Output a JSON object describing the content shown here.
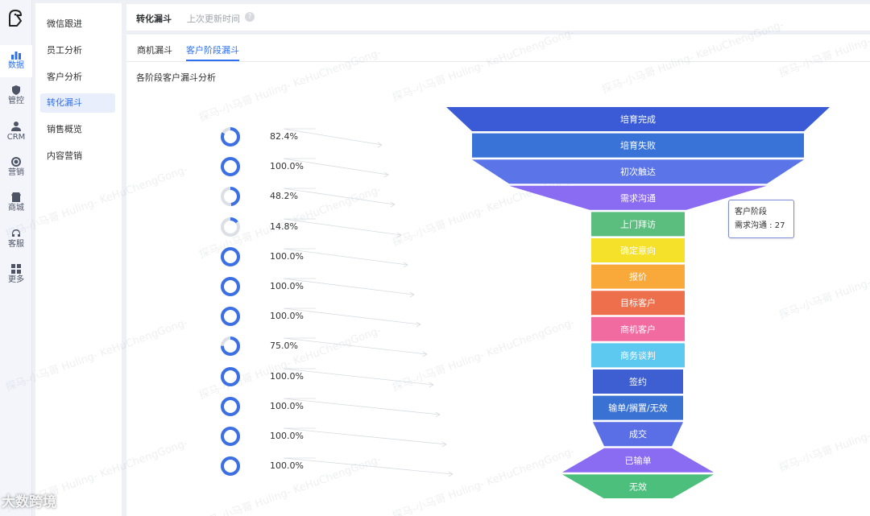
{
  "rail": {
    "items": [
      {
        "label": "数据",
        "icon": "bar-chart-icon",
        "active": true
      },
      {
        "label": "管控",
        "icon": "shield-icon"
      },
      {
        "label": "CRM",
        "icon": "user-icon"
      },
      {
        "label": "营销",
        "icon": "target-icon"
      },
      {
        "label": "商城",
        "icon": "shop-icon"
      },
      {
        "label": "客服",
        "icon": "headset-icon"
      },
      {
        "label": "更多",
        "icon": "grid-icon"
      }
    ]
  },
  "menu": {
    "items": [
      "微信跟进",
      "员工分析",
      "客户分析",
      "转化漏斗",
      "销售概览",
      "内容营销"
    ],
    "active": "转化漏斗"
  },
  "header": {
    "title": "转化漏斗",
    "updated": "上次更新时间",
    "help": "?"
  },
  "tabs": [
    "商机漏斗",
    "客户阶段漏斗"
  ],
  "active_tab": "客户阶段漏斗",
  "subtitle": "各阶段客户漏斗分析",
  "conversion_rates": [
    "82.4%",
    "100.0%",
    "48.2%",
    "14.8%",
    "100.0%",
    "100.0%",
    "100.0%",
    "75.0%",
    "100.0%",
    "100.0%",
    "100.0%",
    "100.0%"
  ],
  "conversion_values": [
    82.4,
    100,
    48.2,
    14.8,
    100,
    100,
    100,
    75,
    100,
    100,
    100,
    100
  ],
  "funnel": {
    "stages": [
      "培育完成",
      "培育失败",
      "初次触达",
      "需求沟通",
      "上门拜访",
      "确定意向",
      "报价",
      "目标客户",
      "商机客户",
      "商务谈判",
      "签约",
      "输单/搁置/无效",
      "成交",
      "已输单",
      "无效"
    ],
    "colors": [
      "#3b5bd6",
      "#3a73d8",
      "#5b74e8",
      "#8a6cf2",
      "#5bbd7e",
      "#f6e12a",
      "#f9a93a",
      "#ed6f4c",
      "#f26ba0",
      "#5dc9f1",
      "#3d5fd2",
      "#3a72d3",
      "#5a6fe6",
      "#8a6cf2",
      "#4cbf7c"
    ]
  },
  "tooltip": {
    "title": "客户阶段",
    "value": "需求沟通 : 27"
  },
  "brand": "大数跨境",
  "watermark": "探马-小马哥 Huling- KeHuChengGong-"
}
